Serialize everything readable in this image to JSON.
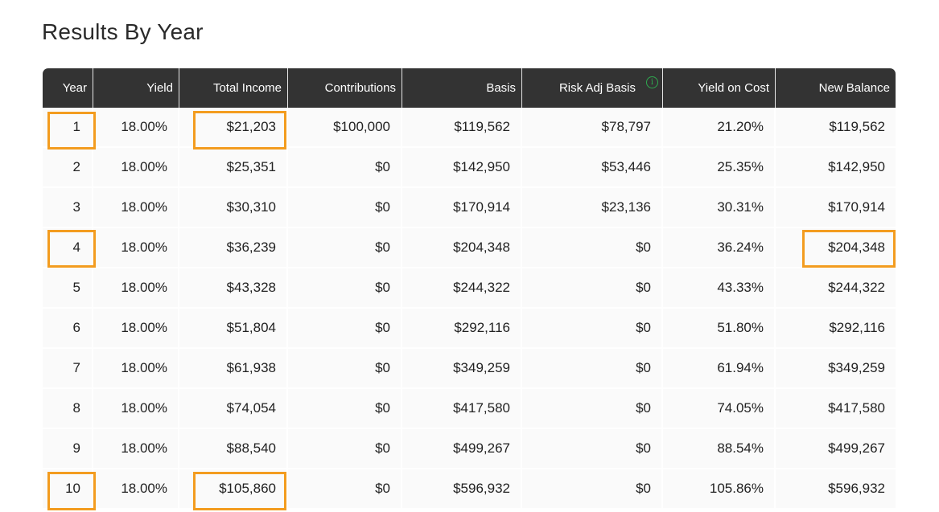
{
  "page": {
    "title": "Results By Year"
  },
  "colors": {
    "header_bg": "#333333",
    "row_bg": "#fafafa",
    "highlight": "#f39c1f",
    "info_icon": "#2faa4f"
  },
  "icons": {
    "risk_adj_basis_info": "info-icon"
  },
  "table": {
    "columns": [
      "Year",
      "Yield",
      "Total Income",
      "Contributions",
      "Basis",
      "Risk Adj Basis",
      "Yield on Cost",
      "New Balance"
    ],
    "rows": [
      [
        "1",
        "18.00%",
        "$21,203",
        "$100,000",
        "$119,562",
        "$78,797",
        "21.20%",
        "$119,562"
      ],
      [
        "2",
        "18.00%",
        "$25,351",
        "$0",
        "$142,950",
        "$53,446",
        "25.35%",
        "$142,950"
      ],
      [
        "3",
        "18.00%",
        "$30,310",
        "$0",
        "$170,914",
        "$23,136",
        "30.31%",
        "$170,914"
      ],
      [
        "4",
        "18.00%",
        "$36,239",
        "$0",
        "$204,348",
        "$0",
        "36.24%",
        "$204,348"
      ],
      [
        "5",
        "18.00%",
        "$43,328",
        "$0",
        "$244,322",
        "$0",
        "43.33%",
        "$244,322"
      ],
      [
        "6",
        "18.00%",
        "$51,804",
        "$0",
        "$292,116",
        "$0",
        "51.80%",
        "$292,116"
      ],
      [
        "7",
        "18.00%",
        "$61,938",
        "$0",
        "$349,259",
        "$0",
        "61.94%",
        "$349,259"
      ],
      [
        "8",
        "18.00%",
        "$74,054",
        "$0",
        "$417,580",
        "$0",
        "74.05%",
        "$417,580"
      ],
      [
        "9",
        "18.00%",
        "$88,540",
        "$0",
        "$499,267",
        "$0",
        "88.54%",
        "$499,267"
      ],
      [
        "10",
        "18.00%",
        "$105,860",
        "$0",
        "$596,932",
        "$0",
        "105.86%",
        "$596,932"
      ]
    ]
  }
}
